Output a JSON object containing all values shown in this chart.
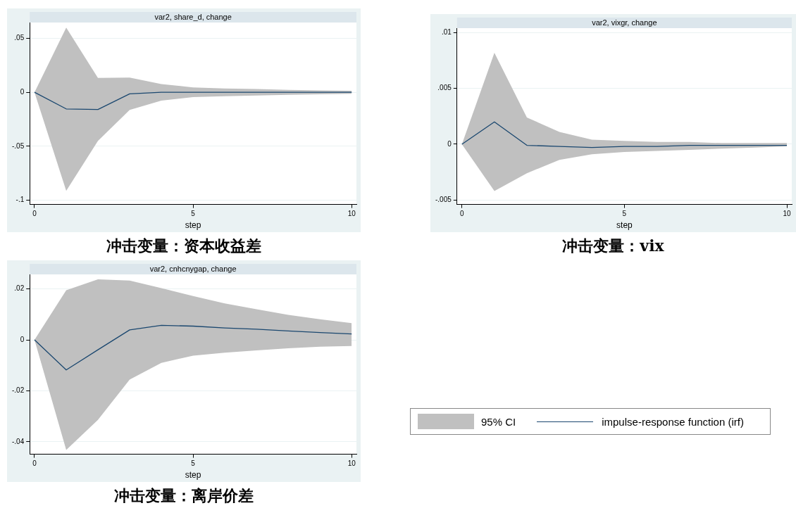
{
  "chart_data": [
    {
      "type": "line",
      "title": "var2, share_d, change",
      "xlabel": "step",
      "annotations": [
        "冲击变量：资本收益差"
      ],
      "x": [
        0,
        1,
        2,
        3,
        4,
        5,
        6,
        7,
        8,
        9,
        10
      ],
      "series": [
        {
          "color": "#1a476f",
          "values": [
            0,
            -0.0154,
            -0.016,
            -0.0014,
            0,
            0,
            0,
            0,
            0,
            0,
            0
          ],
          "lower": [
            0,
            -0.0914,
            -0.045,
            -0.0163,
            -0.0077,
            -0.0045,
            -0.0036,
            -0.003,
            -0.0023,
            -0.0018,
            -0.0014
          ],
          "upper": [
            0,
            0.06,
            0.0133,
            0.0136,
            0.0077,
            0.0045,
            0.0036,
            0.003,
            0.0023,
            0.0018,
            0.0014
          ]
        }
      ],
      "xlim": [
        -0.15,
        10.15
      ],
      "xticks": [
        0,
        5,
        10
      ],
      "ylim": [
        -0.104,
        0.0647
      ],
      "yticks": [
        {
          "value": -0.1,
          "label": "-.1"
        },
        {
          "value": -0.05,
          "label": "-.05"
        },
        {
          "value": 0,
          "label": "0"
        },
        {
          "value": 0.05,
          "label": ".05"
        }
      ],
      "grid": "y",
      "marker": "none"
    },
    {
      "type": "line",
      "title": "var2, vixgr, change",
      "xlabel": "step",
      "annotations": [
        "冲击变量：vix"
      ],
      "x": [
        0,
        1,
        2,
        3,
        4,
        5,
        6,
        7,
        8,
        9,
        10
      ],
      "series": [
        {
          "color": "#1a476f",
          "values": [
            0,
            0.002,
            -0.0001,
            -0.0002,
            -0.0003,
            -0.0002,
            -0.0002,
            -0.0001,
            -0.0001,
            -0.0001,
            -0.0001
          ],
          "lower": [
            0,
            -0.0042,
            -0.0026,
            -0.0014,
            -0.0009,
            -0.0007,
            -0.0006,
            -0.0005,
            -0.0004,
            -0.0003,
            -0.0002
          ],
          "upper": [
            0,
            0.0082,
            0.0024,
            0.0011,
            0.0004,
            0.0003,
            0.0002,
            0.0002,
            0.0001,
            0.0001,
            0.0001
          ]
        }
      ],
      "xlim": [
        -0.15,
        10.15
      ],
      "xticks": [
        0,
        5,
        10
      ],
      "ylim": [
        -0.0054,
        0.0104
      ],
      "yticks": [
        {
          "value": -0.005,
          "label": "-.005"
        },
        {
          "value": 0,
          "label": "0"
        },
        {
          "value": 0.005,
          "label": ".005"
        },
        {
          "value": 0.01,
          "label": ".01"
        }
      ],
      "grid": "y",
      "marker": "none"
    },
    {
      "type": "line",
      "title": "var2, cnhcnygap, change",
      "xlabel": "step",
      "annotations": [
        "冲击变量：离岸价差",
        "95% CI"
      ],
      "x": [
        0,
        1,
        2,
        3,
        4,
        5,
        6,
        7,
        8,
        9,
        10
      ],
      "series": [
        {
          "name": "impulse-response function (irf)",
          "color": "#1a476f",
          "values": [
            0,
            -0.0118,
            -0.0039,
            0.0039,
            0.0057,
            0.0054,
            0.0047,
            0.0042,
            0.0035,
            0.0029,
            0.0023
          ],
          "lower": [
            0,
            -0.0432,
            -0.0314,
            -0.0156,
            -0.009,
            -0.0062,
            -0.005,
            -0.0041,
            -0.0033,
            -0.0027,
            -0.0024
          ],
          "upper": [
            0,
            0.0195,
            0.0238,
            0.0233,
            0.0203,
            0.0172,
            0.0143,
            0.012,
            0.0098,
            0.0081,
            0.0066
          ]
        }
      ],
      "xlim": [
        -0.15,
        10.15
      ],
      "xticks": [
        0,
        5,
        10
      ],
      "ylim": [
        -0.0449,
        0.0257
      ],
      "yticks": [
        {
          "value": -0.04,
          "label": "-.04"
        },
        {
          "value": -0.02,
          "label": "-.02"
        },
        {
          "value": 0,
          "label": "0"
        },
        {
          "value": 0.02,
          "label": ".02"
        }
      ],
      "grid": "y",
      "marker": "none",
      "legend": "right"
    }
  ]
}
